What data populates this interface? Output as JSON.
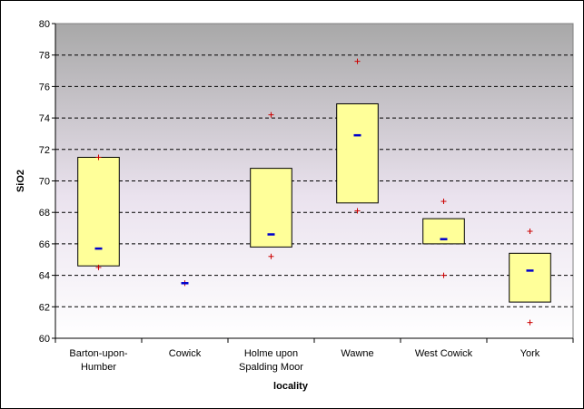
{
  "chart_data": {
    "type": "box",
    "xlabel": "locality",
    "ylabel": "SiO2",
    "ylim": [
      60,
      80
    ],
    "yticks": [
      60,
      62,
      64,
      66,
      68,
      70,
      72,
      74,
      76,
      78,
      80
    ],
    "grid": true,
    "categories": [
      "Barton-upon-Humber",
      "Cowick",
      "Holme upon Spalding Moor",
      "Wawne",
      "West Cowick",
      "York"
    ],
    "category_lines": [
      [
        "Barton-upon-",
        "Humber"
      ],
      [
        "Cowick"
      ],
      [
        "Holme upon",
        "Spalding Moor"
      ],
      [
        "Wawne"
      ],
      [
        "West Cowick"
      ],
      [
        "York"
      ]
    ],
    "boxes": [
      {
        "q1": 64.6,
        "q3": 71.5,
        "median": 65.7,
        "min": 64.5,
        "max": 71.5
      },
      {
        "q1": null,
        "q3": null,
        "median": 63.5,
        "min": 63.5,
        "max": 63.5
      },
      {
        "q1": 65.8,
        "q3": 70.8,
        "median": 66.6,
        "min": 65.2,
        "max": 74.2
      },
      {
        "q1": 68.6,
        "q3": 74.9,
        "median": 72.9,
        "min": 68.1,
        "max": 77.6
      },
      {
        "q1": 66.0,
        "q3": 67.6,
        "median": 66.3,
        "min": 64.0,
        "max": 68.7
      },
      {
        "q1": 62.3,
        "q3": 65.4,
        "median": 64.3,
        "min": 61.0,
        "max": 66.8
      }
    ],
    "colors": {
      "box_fill": "#ffff99",
      "median": "#0000cc",
      "extreme": "#cc0000",
      "plot_top": "#a8a8a8",
      "plot_mid": "#eae2ee",
      "plot_bottom": "#ffffff"
    }
  }
}
